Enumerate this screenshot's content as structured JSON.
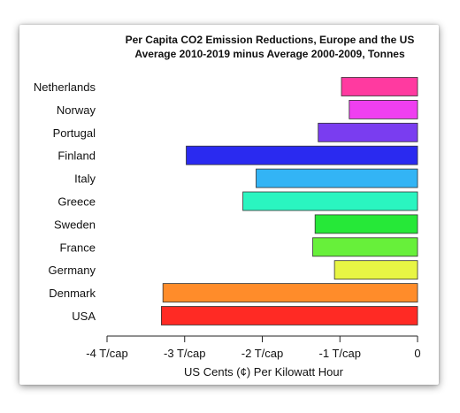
{
  "chart_data": {
    "type": "bar",
    "orientation": "horizontal",
    "title": [
      "Per Capita CO2 Emission Reductions, Europe and the US",
      "Average 2010-2019 minus Average 2000-2009, Tonnes"
    ],
    "xlabel": "US Cents (¢) Per Kilowatt Hour",
    "ylabel": "",
    "xlim": [
      -4,
      0
    ],
    "xticks": [
      {
        "value": -4,
        "label": "-4 T/cap"
      },
      {
        "value": -3,
        "label": "-3 T/cap"
      },
      {
        "value": -2,
        "label": "-2 T/cap"
      },
      {
        "value": -1,
        "label": "-1 T/cap"
      },
      {
        "value": 0,
        "label": "0"
      }
    ],
    "grid": false,
    "legend": "none",
    "categories": [
      "Netherlands",
      "Norway",
      "Portugal",
      "Finland",
      "Italy",
      "Greece",
      "Sweden",
      "France",
      "Germany",
      "Denmark",
      "USA"
    ],
    "values": [
      -0.98,
      -0.88,
      -1.28,
      -2.98,
      -2.08,
      -2.25,
      -1.32,
      -1.35,
      -1.07,
      -3.28,
      -3.3
    ],
    "colors": [
      "#ff3aa0",
      "#ef3ff0",
      "#7a3df0",
      "#2a2af0",
      "#33b4f5",
      "#2af5c0",
      "#26e838",
      "#67f03a",
      "#e8f544",
      "#ff8c2a",
      "#ff2a24"
    ]
  }
}
